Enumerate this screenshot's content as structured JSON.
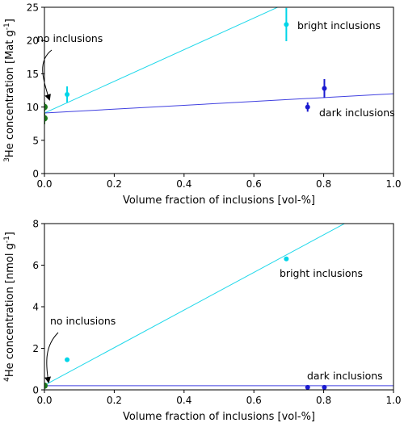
{
  "colors": {
    "bright": "#00d5e8",
    "bright_line": "#20d8ea",
    "dark": "#1a1ad0",
    "dark_line": "#4040e0",
    "none": "#1a7a1a"
  },
  "chart_data": [
    {
      "type": "scatter",
      "xlabel": "Volume fraction of inclusions [vol-%]",
      "ylabel_parts": [
        "3",
        "He concentration [Mat g",
        "-1",
        "]"
      ],
      "xlim": [
        0.0,
        1.0
      ],
      "ylim": [
        0,
        25
      ],
      "xticks": [
        0.0,
        0.2,
        0.4,
        0.6,
        0.8,
        1.0
      ],
      "xtick_labels": [
        "0.0",
        "0.2",
        "0.4",
        "0.6",
        "0.8",
        "1.0"
      ],
      "yticks": [
        0,
        5,
        10,
        15,
        20,
        25
      ],
      "ytick_labels": [
        "0",
        "5",
        "10",
        "15",
        "20",
        "25"
      ],
      "series": [
        {
          "key": "bright",
          "points": [
            {
              "x": 0.065,
              "y": 11.9,
              "err": 1.2
            },
            {
              "x": 0.693,
              "y": 22.4,
              "err": 2.5
            }
          ],
          "fit": {
            "slope": 23.8,
            "intercept": 9.1
          }
        },
        {
          "key": "dark",
          "points": [
            {
              "x": 0.754,
              "y": 10.0,
              "err": 0.7
            },
            {
              "x": 0.802,
              "y": 12.8,
              "err": 1.4
            }
          ],
          "fit": {
            "slope": 2.9,
            "intercept": 9.1
          }
        },
        {
          "key": "none",
          "points": [
            {
              "x": 0.0,
              "y": 10.0,
              "err": 0.7
            },
            {
              "x": 0.0,
              "y": 8.3,
              "err": 0.9
            }
          ]
        }
      ],
      "annotations": {
        "no_inclusions": "no inclusions",
        "bright_inclusions": "bright inclusions",
        "dark_inclusions": "dark inclusions"
      }
    },
    {
      "type": "scatter",
      "xlabel": "Volume fraction of inclusions [vol-%]",
      "ylabel_parts": [
        "4",
        "He concentration [nmol g",
        "-1",
        "]"
      ],
      "xlim": [
        0.0,
        1.0
      ],
      "ylim": [
        0,
        8
      ],
      "xticks": [
        0.0,
        0.2,
        0.4,
        0.6,
        0.8,
        1.0
      ],
      "xtick_labels": [
        "0.0",
        "0.2",
        "0.4",
        "0.6",
        "0.8",
        "1.0"
      ],
      "yticks": [
        0,
        2,
        4,
        6,
        8
      ],
      "ytick_labels": [
        "0",
        "2",
        "4",
        "6",
        "8"
      ],
      "series": [
        {
          "key": "bright",
          "points": [
            {
              "x": 0.065,
              "y": 1.45,
              "err": 0
            },
            {
              "x": 0.693,
              "y": 6.3,
              "err": 0
            }
          ],
          "fit": {
            "slope": 9.05,
            "intercept": 0.22
          }
        },
        {
          "key": "dark",
          "points": [
            {
              "x": 0.754,
              "y": 0.12,
              "err": 0
            },
            {
              "x": 0.802,
              "y": 0.12,
              "err": 0
            }
          ],
          "fit": {
            "slope": 0.0,
            "intercept": 0.2
          }
        },
        {
          "key": "none",
          "points": [
            {
              "x": 0.0,
              "y": 0.2,
              "err": 0.05
            }
          ]
        }
      ],
      "annotations": {
        "no_inclusions": "no inclusions",
        "bright_inclusions": "bright inclusions",
        "dark_inclusions": "dark inclusions"
      }
    }
  ]
}
